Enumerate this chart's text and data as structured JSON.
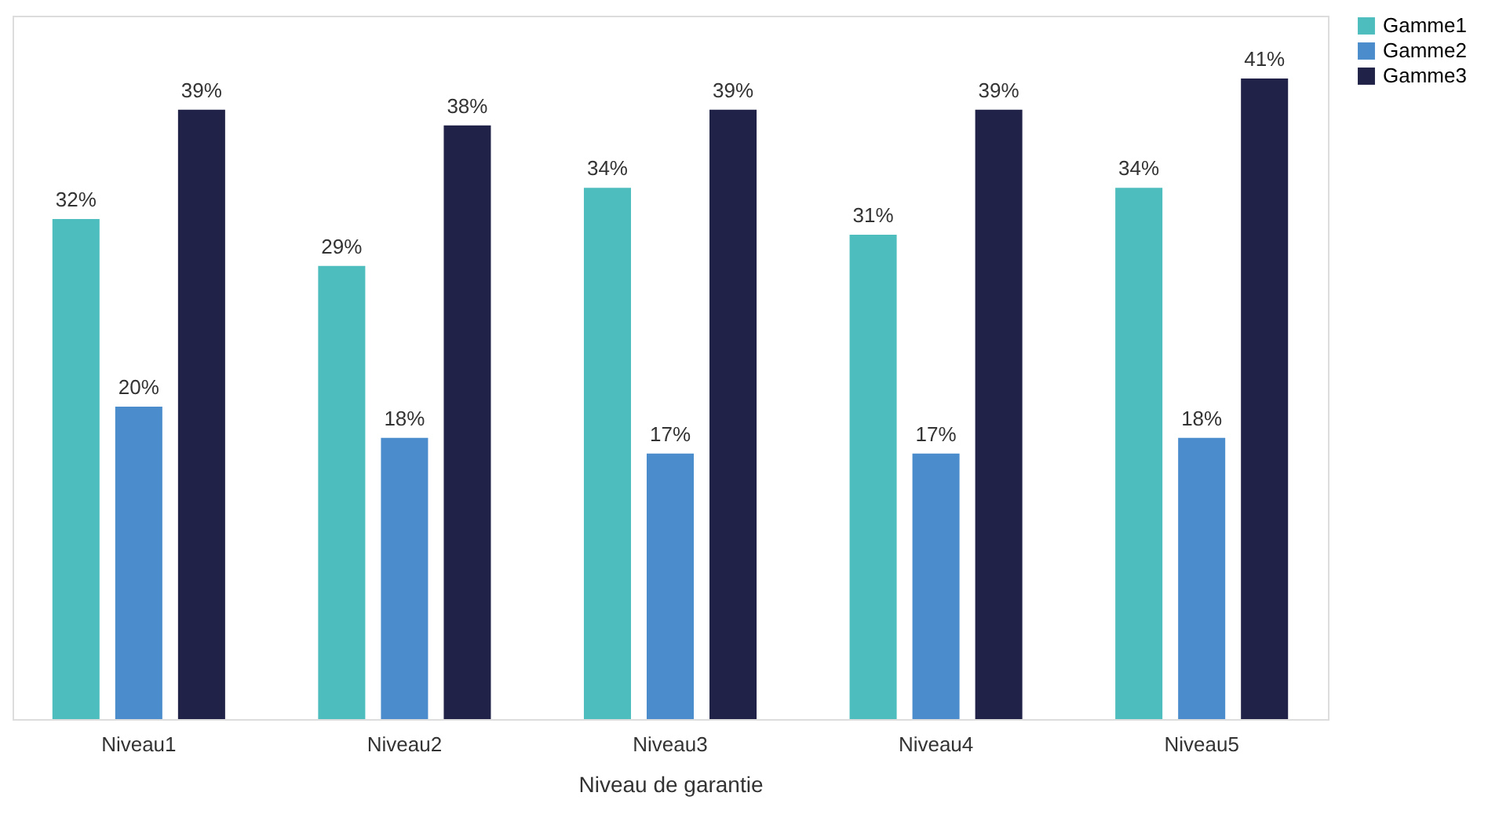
{
  "chart_data": {
    "type": "bar",
    "xlabel": "Niveau de garantie",
    "categories": [
      "Niveau1",
      "Niveau2",
      "Niveau3",
      "Niveau4",
      "Niveau5"
    ],
    "series": [
      {
        "name": "Gamme1",
        "color": "#4dbdbd",
        "values": [
          32,
          29,
          34,
          31,
          34
        ],
        "value_labels": [
          "32%",
          "29%",
          "34%",
          "31%",
          "34%"
        ]
      },
      {
        "name": "Gamme2",
        "color": "#4a8ccc",
        "values": [
          20,
          18,
          17,
          17,
          18
        ],
        "value_labels": [
          "20%",
          "18%",
          "17%",
          "17%",
          "18%"
        ]
      },
      {
        "name": "Gamme3",
        "color": "#202247",
        "values": [
          39,
          38,
          39,
          39,
          41
        ],
        "value_labels": [
          "39%",
          "38%",
          "39%",
          "39%",
          "41%"
        ]
      }
    ],
    "legend": "right",
    "grid": false
  }
}
